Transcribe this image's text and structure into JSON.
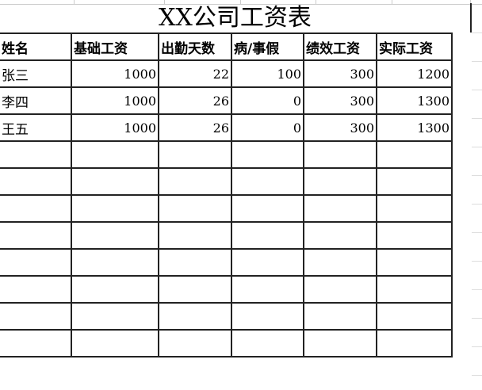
{
  "sheet": {
    "title": "XX公司工资表",
    "headers": [
      "姓名",
      "基础工资",
      "出勤天数",
      "病/事假",
      "绩效工资",
      "实际工资"
    ],
    "rows": [
      [
        "张三",
        "1000",
        "22",
        "100",
        "300",
        "1200"
      ],
      [
        "李四",
        "1000",
        "26",
        "0",
        "300",
        "1300"
      ],
      [
        "王五",
        "1000",
        "26",
        "0",
        "300",
        "1300"
      ]
    ],
    "empty_rows": 8
  }
}
